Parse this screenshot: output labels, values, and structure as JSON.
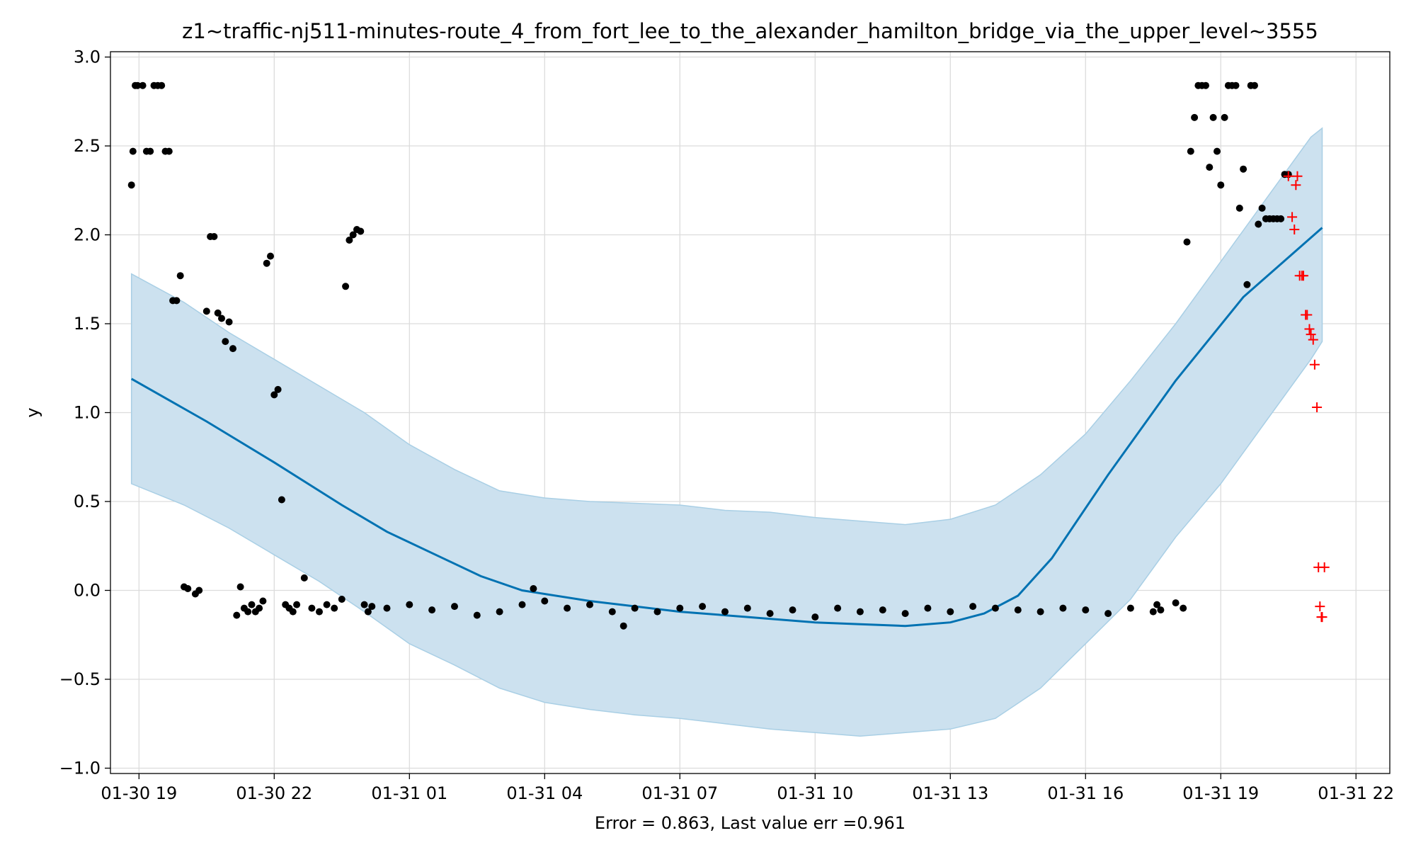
{
  "chart_data": {
    "type": "line",
    "title": "z1~traffic-nj511-minutes-route_4_from_fort_lee_to_the_alexander_hamilton_bridge_via_the_upper_level~3555",
    "xlabel": "Error = 0.863, Last value err =0.961",
    "ylabel": "y",
    "x_axis_type": "datetime",
    "x_domain": [
      "2019-01-30 18:22",
      "2019-01-31 22:45"
    ],
    "ylim": [
      -1.03,
      3.03
    ],
    "x_ticks": [
      {
        "t": "2019-01-30 19:00",
        "label": "01-30 19"
      },
      {
        "t": "2019-01-30 22:00",
        "label": "01-30 22"
      },
      {
        "t": "2019-01-31 01:00",
        "label": "01-31 01"
      },
      {
        "t": "2019-01-31 04:00",
        "label": "01-31 04"
      },
      {
        "t": "2019-01-31 07:00",
        "label": "01-31 07"
      },
      {
        "t": "2019-01-31 10:00",
        "label": "01-31 10"
      },
      {
        "t": "2019-01-31 13:00",
        "label": "01-31 13"
      },
      {
        "t": "2019-01-31 16:00",
        "label": "01-31 16"
      },
      {
        "t": "2019-01-31 19:00",
        "label": "01-31 19"
      },
      {
        "t": "2019-01-31 22:00",
        "label": "01-31 22"
      }
    ],
    "y_ticks": [
      {
        "v": 3.0,
        "label": "3.0"
      },
      {
        "v": 2.5,
        "label": "2.5"
      },
      {
        "v": 2.0,
        "label": "2.0"
      },
      {
        "v": 1.5,
        "label": "1.5"
      },
      {
        "v": 1.0,
        "label": "1.0"
      },
      {
        "v": 0.5,
        "label": "0.5"
      },
      {
        "v": 0.0,
        "label": "0.0"
      },
      {
        "v": -0.5,
        "label": "−0.5"
      },
      {
        "v": -1.0,
        "label": "−1.0"
      }
    ],
    "grid": true,
    "colors": {
      "forecast": "#0072b2",
      "band_fill": "#cce1ef",
      "band_edge": "#a9cfe5",
      "observed": "#000000",
      "future": "#ff0000",
      "grid": "#dcdcdc"
    },
    "forecast_line": {
      "x": [
        "2019-01-30 18:50",
        "2019-01-30 20:30",
        "2019-01-30 22:00",
        "2019-01-30 23:30",
        "2019-01-31 00:30",
        "2019-01-31 01:45",
        "2019-01-31 02:35",
        "2019-01-31 03:30",
        "2019-01-31 05:00",
        "2019-01-31 07:00",
        "2019-01-31 08:30",
        "2019-01-31 10:00",
        "2019-01-31 11:00",
        "2019-01-31 12:00",
        "2019-01-31 13:00",
        "2019-01-31 13:45",
        "2019-01-31 14:30",
        "2019-01-31 15:15",
        "2019-01-31 16:30",
        "2019-01-31 18:00",
        "2019-01-31 19:30",
        "2019-01-31 21:15"
      ],
      "y": [
        1.19,
        0.95,
        0.72,
        0.48,
        0.33,
        0.18,
        0.08,
        0.0,
        -0.06,
        -0.12,
        -0.15,
        -0.18,
        -0.19,
        -0.2,
        -0.18,
        -0.13,
        -0.03,
        0.18,
        0.65,
        1.18,
        1.65,
        2.04
      ]
    },
    "uncertainty_band": {
      "x": [
        "2019-01-30 18:50",
        "2019-01-30 20:00",
        "2019-01-30 21:00",
        "2019-01-30 22:00",
        "2019-01-30 23:00",
        "2019-01-31 00:00",
        "2019-01-31 01:00",
        "2019-01-31 02:00",
        "2019-01-31 03:00",
        "2019-01-31 04:00",
        "2019-01-31 05:00",
        "2019-01-31 06:00",
        "2019-01-31 07:00",
        "2019-01-31 08:00",
        "2019-01-31 09:00",
        "2019-01-31 10:00",
        "2019-01-31 11:00",
        "2019-01-31 12:00",
        "2019-01-31 13:00",
        "2019-01-31 14:00",
        "2019-01-31 15:00",
        "2019-01-31 16:00",
        "2019-01-31 17:00",
        "2019-01-31 18:00",
        "2019-01-31 19:00",
        "2019-01-31 20:00",
        "2019-01-31 21:00",
        "2019-01-31 21:15"
      ],
      "upper": [
        1.78,
        1.62,
        1.45,
        1.3,
        1.15,
        1.0,
        0.82,
        0.68,
        0.56,
        0.52,
        0.5,
        0.49,
        0.48,
        0.45,
        0.44,
        0.41,
        0.39,
        0.37,
        0.4,
        0.48,
        0.65,
        0.88,
        1.18,
        1.5,
        1.85,
        2.2,
        2.55,
        2.6
      ],
      "lower": [
        0.6,
        0.48,
        0.35,
        0.2,
        0.05,
        -0.12,
        -0.3,
        -0.42,
        -0.55,
        -0.63,
        -0.67,
        -0.7,
        -0.72,
        -0.75,
        -0.78,
        -0.8,
        -0.82,
        -0.8,
        -0.78,
        -0.72,
        -0.55,
        -0.3,
        -0.05,
        0.3,
        0.6,
        0.95,
        1.3,
        1.4
      ]
    },
    "observed": {
      "x": [
        "2019-01-30 18:50",
        "2019-01-30 18:52",
        "2019-01-30 18:55",
        "2019-01-30 18:58",
        "2019-01-30 19:05",
        "2019-01-30 19:10",
        "2019-01-30 19:15",
        "2019-01-30 19:20",
        "2019-01-30 19:25",
        "2019-01-30 19:30",
        "2019-01-30 19:35",
        "2019-01-30 19:40",
        "2019-01-30 19:45",
        "2019-01-30 19:50",
        "2019-01-30 19:55",
        "2019-01-30 20:00",
        "2019-01-30 20:05",
        "2019-01-30 20:15",
        "2019-01-30 20:20",
        "2019-01-30 20:30",
        "2019-01-30 20:35",
        "2019-01-30 20:40",
        "2019-01-30 20:45",
        "2019-01-30 20:50",
        "2019-01-30 20:55",
        "2019-01-30 21:00",
        "2019-01-30 21:05",
        "2019-01-30 21:10",
        "2019-01-30 21:15",
        "2019-01-30 21:20",
        "2019-01-30 21:25",
        "2019-01-30 21:30",
        "2019-01-30 21:35",
        "2019-01-30 21:40",
        "2019-01-30 21:45",
        "2019-01-30 21:50",
        "2019-01-30 21:55",
        "2019-01-30 22:00",
        "2019-01-30 22:05",
        "2019-01-30 22:10",
        "2019-01-30 22:15",
        "2019-01-30 22:20",
        "2019-01-30 22:25",
        "2019-01-30 22:30",
        "2019-01-30 22:40",
        "2019-01-30 22:50",
        "2019-01-30 23:00",
        "2019-01-30 23:10",
        "2019-01-30 23:20",
        "2019-01-30 23:30",
        "2019-01-30 23:35",
        "2019-01-30 23:40",
        "2019-01-30 23:45",
        "2019-01-30 23:50",
        "2019-01-30 23:55",
        "2019-01-31 00:00",
        "2019-01-31 00:05",
        "2019-01-31 00:10",
        "2019-01-31 00:30",
        "2019-01-31 01:00",
        "2019-01-31 01:30",
        "2019-01-31 02:00",
        "2019-01-31 02:30",
        "2019-01-31 03:00",
        "2019-01-31 03:30",
        "2019-01-31 03:45",
        "2019-01-31 04:00",
        "2019-01-31 04:30",
        "2019-01-31 05:00",
        "2019-01-31 05:30",
        "2019-01-31 05:45",
        "2019-01-31 06:00",
        "2019-01-31 06:30",
        "2019-01-31 07:00",
        "2019-01-31 07:30",
        "2019-01-31 08:00",
        "2019-01-31 08:30",
        "2019-01-31 09:00",
        "2019-01-31 09:30",
        "2019-01-31 10:00",
        "2019-01-31 10:30",
        "2019-01-31 11:00",
        "2019-01-31 11:30",
        "2019-01-31 12:00",
        "2019-01-31 12:30",
        "2019-01-31 13:00",
        "2019-01-31 13:30",
        "2019-01-31 14:00",
        "2019-01-31 14:30",
        "2019-01-31 15:00",
        "2019-01-31 15:30",
        "2019-01-31 16:00",
        "2019-01-31 16:30",
        "2019-01-31 17:00",
        "2019-01-31 17:30",
        "2019-01-31 17:35",
        "2019-01-31 17:40",
        "2019-01-31 18:00",
        "2019-01-31 18:10",
        "2019-01-31 18:15",
        "2019-01-31 18:20",
        "2019-01-31 18:25",
        "2019-01-31 18:30",
        "2019-01-31 18:35",
        "2019-01-31 18:40",
        "2019-01-31 18:45",
        "2019-01-31 18:50",
        "2019-01-31 18:55",
        "2019-01-31 19:00",
        "2019-01-31 19:05",
        "2019-01-31 19:10",
        "2019-01-31 19:15",
        "2019-01-31 19:20",
        "2019-01-31 19:25",
        "2019-01-31 19:30",
        "2019-01-31 19:35",
        "2019-01-31 19:40",
        "2019-01-31 19:45",
        "2019-01-31 19:50",
        "2019-01-31 19:55",
        "2019-01-31 20:00",
        "2019-01-31 20:05",
        "2019-01-31 20:10",
        "2019-01-31 20:15",
        "2019-01-31 20:20",
        "2019-01-31 20:25",
        "2019-01-31 20:30"
      ],
      "y": [
        2.28,
        2.47,
        2.84,
        2.84,
        2.84,
        2.47,
        2.47,
        2.84,
        2.84,
        2.84,
        2.47,
        2.47,
        1.63,
        1.63,
        1.77,
        0.02,
        0.01,
        -0.02,
        0.0,
        1.57,
        1.99,
        1.99,
        1.56,
        1.53,
        1.4,
        1.51,
        1.36,
        -0.14,
        0.02,
        -0.1,
        -0.12,
        -0.08,
        -0.12,
        -0.1,
        -0.06,
        1.84,
        1.88,
        1.1,
        1.13,
        0.51,
        -0.08,
        -0.1,
        -0.12,
        -0.08,
        0.07,
        -0.1,
        -0.12,
        -0.08,
        -0.1,
        -0.05,
        1.71,
        1.97,
        2.0,
        2.03,
        2.02,
        -0.08,
        -0.12,
        -0.09,
        -0.1,
        -0.08,
        -0.11,
        -0.09,
        -0.14,
        -0.12,
        -0.08,
        0.01,
        -0.06,
        -0.1,
        -0.08,
        -0.12,
        -0.2,
        -0.1,
        -0.12,
        -0.1,
        -0.09,
        -0.12,
        -0.1,
        -0.13,
        -0.11,
        -0.15,
        -0.1,
        -0.12,
        -0.11,
        -0.13,
        -0.1,
        -0.12,
        -0.09,
        -0.1,
        -0.11,
        -0.12,
        -0.1,
        -0.11,
        -0.13,
        -0.1,
        -0.12,
        -0.08,
        -0.11,
        -0.07,
        -0.1,
        1.96,
        2.47,
        2.66,
        2.84,
        2.84,
        2.84,
        2.38,
        2.66,
        2.47,
        2.28,
        2.66,
        2.84,
        2.84,
        2.84,
        2.15,
        2.37,
        1.72,
        2.84,
        2.84,
        2.06,
        2.15,
        2.09,
        2.09,
        2.09,
        2.09,
        2.09,
        2.34,
        2.34
      ]
    },
    "future_points": {
      "x": [
        "2019-01-31 20:30",
        "2019-01-31 20:35",
        "2019-01-31 20:38",
        "2019-01-31 20:40",
        "2019-01-31 20:42",
        "2019-01-31 20:45",
        "2019-01-31 20:48",
        "2019-01-31 20:50",
        "2019-01-31 20:53",
        "2019-01-31 20:55",
        "2019-01-31 20:58",
        "2019-01-31 21:00",
        "2019-01-31 21:03",
        "2019-01-31 21:05",
        "2019-01-31 21:08",
        "2019-01-31 21:10",
        "2019-01-31 21:12",
        "2019-01-31 21:14",
        "2019-01-31 21:15",
        "2019-01-31 21:18"
      ],
      "y": [
        2.33,
        2.1,
        2.03,
        2.28,
        2.33,
        1.77,
        1.77,
        1.77,
        1.55,
        1.55,
        1.47,
        1.44,
        1.41,
        1.27,
        1.03,
        0.13,
        -0.09,
        -0.15,
        -0.15,
        0.13
      ]
    }
  }
}
